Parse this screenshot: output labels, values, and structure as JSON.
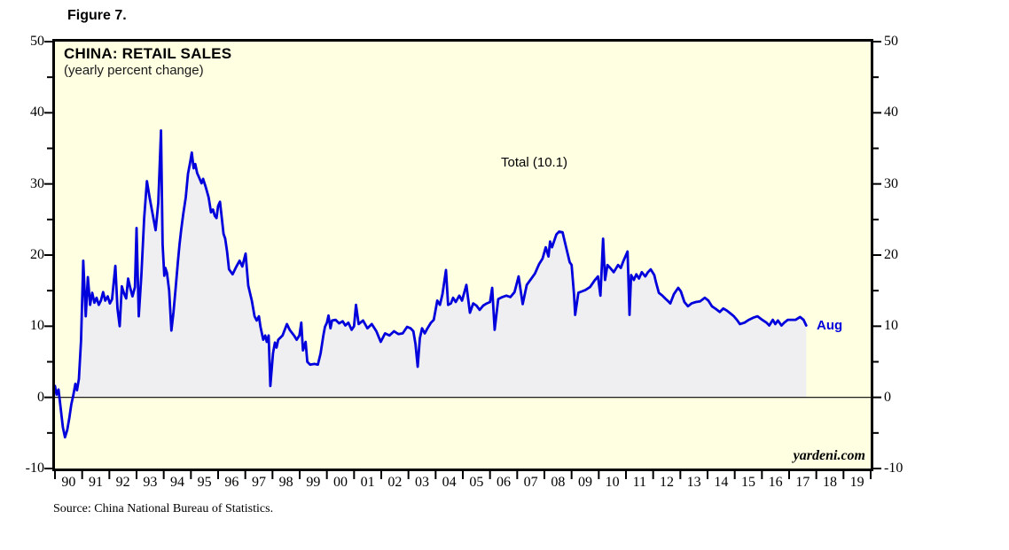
{
  "figure_label": "Figure 7.",
  "chart": {
    "title": "CHINA: RETAIL SALES",
    "subtitle": "(yearly percent change)",
    "total_annotation": "Total (10.1)",
    "end_label": "Aug",
    "watermark": "yardeni.com",
    "source": "Source: China National Bureau of Statistics."
  },
  "colors": {
    "line": "#0000dd",
    "area_fill": "#efeff1",
    "plot_background": "#ffffe2",
    "end_label": "#0000dd",
    "axis": "#000000"
  },
  "chart_data": {
    "type": "line",
    "title": "CHINA: RETAIL SALES",
    "subtitle": "(yearly percent change)",
    "xlabel": "",
    "ylabel": "",
    "xlim": [
      1990,
      2020
    ],
    "ylim": [
      -10,
      50
    ],
    "grid": false,
    "legend_position": "none",
    "y_major_ticks": [
      -10,
      0,
      10,
      20,
      30,
      40,
      50
    ],
    "y_minor_step": 5,
    "x_tick_labels": [
      "90",
      "91",
      "92",
      "93",
      "94",
      "95",
      "96",
      "97",
      "98",
      "99",
      "00",
      "01",
      "02",
      "03",
      "04",
      "05",
      "06",
      "07",
      "08",
      "09",
      "10",
      "11",
      "12",
      "13",
      "14",
      "15",
      "16",
      "17",
      "18",
      "19"
    ],
    "latest_point": {
      "label": "Aug",
      "value": 10.1
    },
    "series": [
      {
        "name": "Total",
        "annotation": "Total (10.1)",
        "points": [
          [
            1990.0,
            1.6
          ],
          [
            1990.06,
            0.4
          ],
          [
            1990.13,
            1.1
          ],
          [
            1990.21,
            -1.5
          ],
          [
            1990.29,
            -4.2
          ],
          [
            1990.37,
            -5.6
          ],
          [
            1990.45,
            -4.6
          ],
          [
            1990.53,
            -2.8
          ],
          [
            1990.6,
            -1.0
          ],
          [
            1990.67,
            0.2
          ],
          [
            1990.75,
            1.9
          ],
          [
            1990.81,
            1.0
          ],
          [
            1990.88,
            2.6
          ],
          [
            1990.96,
            8.0
          ],
          [
            1991.04,
            19.2
          ],
          [
            1991.13,
            11.4
          ],
          [
            1991.21,
            16.9
          ],
          [
            1991.29,
            13.0
          ],
          [
            1991.37,
            14.7
          ],
          [
            1991.45,
            13.3
          ],
          [
            1991.53,
            14.0
          ],
          [
            1991.61,
            13.0
          ],
          [
            1991.69,
            13.6
          ],
          [
            1991.77,
            14.8
          ],
          [
            1991.85,
            13.6
          ],
          [
            1991.94,
            14.2
          ],
          [
            1992.02,
            13.2
          ],
          [
            1992.1,
            13.8
          ],
          [
            1992.22,
            18.5
          ],
          [
            1992.3,
            12.5
          ],
          [
            1992.38,
            10.0
          ],
          [
            1992.46,
            15.6
          ],
          [
            1992.54,
            14.6
          ],
          [
            1992.62,
            13.9
          ],
          [
            1992.69,
            16.7
          ],
          [
            1992.77,
            15.4
          ],
          [
            1992.85,
            14.2
          ],
          [
            1992.94,
            15.5
          ],
          [
            1993.0,
            23.8
          ],
          [
            1993.08,
            11.4
          ],
          [
            1993.18,
            17.3
          ],
          [
            1993.28,
            25.2
          ],
          [
            1993.38,
            30.4
          ],
          [
            1993.48,
            28.1
          ],
          [
            1993.58,
            26.0
          ],
          [
            1993.7,
            23.5
          ],
          [
            1993.8,
            27.3
          ],
          [
            1993.9,
            37.5
          ],
          [
            1993.96,
            21.5
          ],
          [
            1994.02,
            17.1
          ],
          [
            1994.06,
            18.2
          ],
          [
            1994.12,
            17.5
          ],
          [
            1994.2,
            15.0
          ],
          [
            1994.28,
            9.4
          ],
          [
            1994.36,
            12.0
          ],
          [
            1994.44,
            15.5
          ],
          [
            1994.52,
            19.0
          ],
          [
            1994.58,
            21.5
          ],
          [
            1994.64,
            23.5
          ],
          [
            1994.72,
            25.8
          ],
          [
            1994.81,
            28.1
          ],
          [
            1994.89,
            31.4
          ],
          [
            1994.97,
            33.0
          ],
          [
            1995.03,
            34.4
          ],
          [
            1995.1,
            32.2
          ],
          [
            1995.16,
            32.8
          ],
          [
            1995.23,
            31.5
          ],
          [
            1995.29,
            31.0
          ],
          [
            1995.39,
            30.1
          ],
          [
            1995.45,
            30.7
          ],
          [
            1995.55,
            29.5
          ],
          [
            1995.65,
            28.1
          ],
          [
            1995.74,
            26.0
          ],
          [
            1995.81,
            26.4
          ],
          [
            1995.88,
            25.5
          ],
          [
            1995.94,
            25.2
          ],
          [
            1996.0,
            26.9
          ],
          [
            1996.07,
            27.5
          ],
          [
            1996.13,
            25.4
          ],
          [
            1996.2,
            23.0
          ],
          [
            1996.26,
            22.3
          ],
          [
            1996.33,
            20.5
          ],
          [
            1996.4,
            18.0
          ],
          [
            1996.53,
            17.3
          ],
          [
            1996.66,
            18.3
          ],
          [
            1996.79,
            19.2
          ],
          [
            1996.89,
            18.4
          ],
          [
            1997.01,
            20.2
          ],
          [
            1997.11,
            15.7
          ],
          [
            1997.24,
            13.6
          ],
          [
            1997.34,
            11.4
          ],
          [
            1997.42,
            10.8
          ],
          [
            1997.5,
            11.4
          ],
          [
            1997.56,
            9.9
          ],
          [
            1997.66,
            8.1
          ],
          [
            1997.73,
            8.7
          ],
          [
            1997.79,
            7.8
          ],
          [
            1997.86,
            8.7
          ],
          [
            1997.92,
            1.6
          ],
          [
            1998.02,
            6.2
          ],
          [
            1998.09,
            7.7
          ],
          [
            1998.15,
            7.0
          ],
          [
            1998.21,
            8.1
          ],
          [
            1998.37,
            8.7
          ],
          [
            1998.53,
            10.3
          ],
          [
            1998.63,
            9.5
          ],
          [
            1998.79,
            8.7
          ],
          [
            1998.89,
            8.1
          ],
          [
            1998.99,
            8.7
          ],
          [
            1999.06,
            10.5
          ],
          [
            1999.12,
            6.6
          ],
          [
            1999.22,
            7.8
          ],
          [
            1999.28,
            5.0
          ],
          [
            1999.38,
            4.6
          ],
          [
            1999.54,
            4.7
          ],
          [
            1999.67,
            4.6
          ],
          [
            1999.77,
            6.2
          ],
          [
            1999.87,
            8.7
          ],
          [
            1999.93,
            9.9
          ],
          [
            2000.0,
            10.5
          ],
          [
            2000.06,
            11.5
          ],
          [
            2000.13,
            9.7
          ],
          [
            2000.19,
            10.8
          ],
          [
            2000.32,
            10.9
          ],
          [
            2000.45,
            10.4
          ],
          [
            2000.58,
            10.7
          ],
          [
            2000.68,
            10.1
          ],
          [
            2000.79,
            10.5
          ],
          [
            2000.91,
            9.5
          ],
          [
            2001.0,
            10.0
          ],
          [
            2001.07,
            13.0
          ],
          [
            2001.17,
            10.3
          ],
          [
            2001.33,
            10.8
          ],
          [
            2001.49,
            9.7
          ],
          [
            2001.65,
            10.3
          ],
          [
            2001.82,
            9.3
          ],
          [
            2001.98,
            7.8
          ],
          [
            2002.14,
            9.0
          ],
          [
            2002.3,
            8.7
          ],
          [
            2002.47,
            9.3
          ],
          [
            2002.63,
            8.9
          ],
          [
            2002.79,
            9.0
          ],
          [
            2002.95,
            9.9
          ],
          [
            2003.08,
            9.7
          ],
          [
            2003.18,
            9.3
          ],
          [
            2003.26,
            7.5
          ],
          [
            2003.34,
            4.3
          ],
          [
            2003.42,
            8.3
          ],
          [
            2003.5,
            9.7
          ],
          [
            2003.6,
            9.0
          ],
          [
            2003.7,
            9.7
          ],
          [
            2003.83,
            10.5
          ],
          [
            2003.93,
            10.9
          ],
          [
            2004.06,
            13.6
          ],
          [
            2004.16,
            13.0
          ],
          [
            2004.25,
            14.5
          ],
          [
            2004.38,
            17.9
          ],
          [
            2004.46,
            13.0
          ],
          [
            2004.56,
            13.2
          ],
          [
            2004.64,
            14.0
          ],
          [
            2004.74,
            13.4
          ],
          [
            2004.87,
            14.3
          ],
          [
            2004.97,
            13.6
          ],
          [
            2005.13,
            15.8
          ],
          [
            2005.26,
            11.9
          ],
          [
            2005.38,
            13.2
          ],
          [
            2005.5,
            12.9
          ],
          [
            2005.62,
            12.3
          ],
          [
            2005.75,
            12.9
          ],
          [
            2005.88,
            13.2
          ],
          [
            2006.0,
            13.4
          ],
          [
            2006.08,
            15.4
          ],
          [
            2006.17,
            9.5
          ],
          [
            2006.3,
            13.8
          ],
          [
            2006.45,
            14.1
          ],
          [
            2006.6,
            14.3
          ],
          [
            2006.75,
            14.1
          ],
          [
            2006.9,
            14.8
          ],
          [
            2007.05,
            17.0
          ],
          [
            2007.2,
            13.1
          ],
          [
            2007.35,
            15.8
          ],
          [
            2007.5,
            16.6
          ],
          [
            2007.65,
            17.4
          ],
          [
            2007.8,
            18.7
          ],
          [
            2007.93,
            19.5
          ],
          [
            2008.05,
            21.1
          ],
          [
            2008.15,
            19.8
          ],
          [
            2008.21,
            21.9
          ],
          [
            2008.28,
            21.1
          ],
          [
            2008.44,
            22.9
          ],
          [
            2008.54,
            23.3
          ],
          [
            2008.67,
            23.2
          ],
          [
            2008.8,
            21.1
          ],
          [
            2008.93,
            19.0
          ],
          [
            2009.0,
            18.6
          ],
          [
            2009.09,
            14.5
          ],
          [
            2009.13,
            11.6
          ],
          [
            2009.25,
            14.7
          ],
          [
            2009.38,
            14.9
          ],
          [
            2009.51,
            15.1
          ],
          [
            2009.68,
            15.5
          ],
          [
            2009.84,
            16.4
          ],
          [
            2009.97,
            17.0
          ],
          [
            2010.06,
            14.3
          ],
          [
            2010.16,
            22.3
          ],
          [
            2010.23,
            16.5
          ],
          [
            2010.32,
            18.6
          ],
          [
            2010.42,
            18.2
          ],
          [
            2010.55,
            17.6
          ],
          [
            2010.71,
            18.6
          ],
          [
            2010.81,
            18.2
          ],
          [
            2010.91,
            19.2
          ],
          [
            2011.06,
            20.5
          ],
          [
            2011.13,
            11.6
          ],
          [
            2011.19,
            17.2
          ],
          [
            2011.29,
            16.5
          ],
          [
            2011.38,
            17.3
          ],
          [
            2011.48,
            16.7
          ],
          [
            2011.58,
            17.6
          ],
          [
            2011.71,
            17.0
          ],
          [
            2011.81,
            17.6
          ],
          [
            2011.91,
            18.0
          ],
          [
            2012.04,
            17.2
          ],
          [
            2012.11,
            16.1
          ],
          [
            2012.21,
            14.7
          ],
          [
            2012.34,
            14.3
          ],
          [
            2012.44,
            13.9
          ],
          [
            2012.53,
            13.6
          ],
          [
            2012.63,
            13.2
          ],
          [
            2012.76,
            14.5
          ],
          [
            2012.92,
            15.4
          ],
          [
            2013.02,
            14.9
          ],
          [
            2013.15,
            13.4
          ],
          [
            2013.28,
            12.8
          ],
          [
            2013.41,
            13.2
          ],
          [
            2013.57,
            13.4
          ],
          [
            2013.73,
            13.5
          ],
          [
            2013.9,
            14.0
          ],
          [
            2014.03,
            13.6
          ],
          [
            2014.16,
            12.8
          ],
          [
            2014.32,
            12.4
          ],
          [
            2014.45,
            12.0
          ],
          [
            2014.58,
            12.5
          ],
          [
            2014.71,
            12.2
          ],
          [
            2014.84,
            11.8
          ],
          [
            2014.97,
            11.4
          ],
          [
            2015.1,
            10.8
          ],
          [
            2015.19,
            10.3
          ],
          [
            2015.36,
            10.5
          ],
          [
            2015.52,
            10.9
          ],
          [
            2015.68,
            11.2
          ],
          [
            2015.84,
            11.4
          ],
          [
            2016.01,
            10.9
          ],
          [
            2016.17,
            10.5
          ],
          [
            2016.27,
            10.1
          ],
          [
            2016.4,
            10.9
          ],
          [
            2016.49,
            10.3
          ],
          [
            2016.59,
            10.8
          ],
          [
            2016.72,
            10.1
          ],
          [
            2016.82,
            10.5
          ],
          [
            2016.95,
            10.9
          ],
          [
            2017.08,
            10.9
          ],
          [
            2017.24,
            10.9
          ],
          [
            2017.4,
            11.3
          ],
          [
            2017.53,
            10.9
          ],
          [
            2017.63,
            10.1
          ]
        ]
      }
    ]
  }
}
